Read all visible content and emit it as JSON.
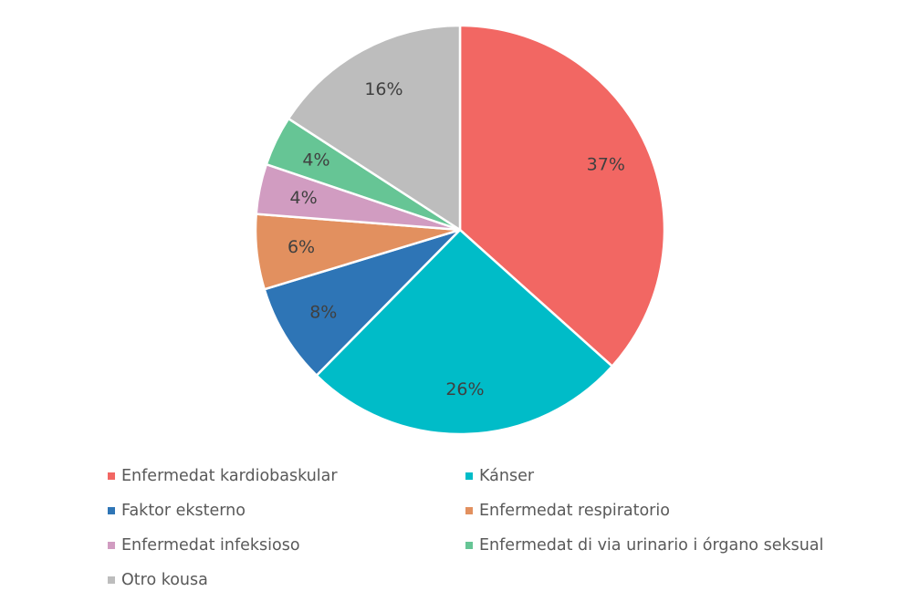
{
  "chart_data": {
    "type": "pie",
    "slices": [
      {
        "name": "Enfermedat kardiobaskular",
        "value": 37,
        "label": "37%",
        "color": "#F26763"
      },
      {
        "name": "Kánser",
        "value": 26,
        "label": "26%",
        "color": "#00BCC8"
      },
      {
        "name": "Faktor eksterno",
        "value": 8,
        "label": "8%",
        "color": "#2E75B6"
      },
      {
        "name": "Enfermedat respiratorio",
        "value": 6,
        "label": "6%",
        "color": "#E2905F"
      },
      {
        "name": "Enfermedat infeksioso",
        "value": 4,
        "label": "4%",
        "color": "#D19CC1"
      },
      {
        "name": "Enfermedat di via urinario i órgano seksual",
        "value": 4,
        "label": "4%",
        "color": "#66C595"
      },
      {
        "name": "Otro kousa",
        "value": 16,
        "label": "16%",
        "color": "#BDBDBD"
      }
    ],
    "start_angle_deg": 0,
    "direction": "clockwise",
    "legend_position": "bottom"
  }
}
